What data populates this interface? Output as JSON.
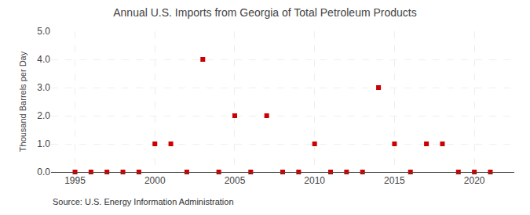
{
  "chart_data": {
    "type": "scatter",
    "title": "Annual U.S. Imports from Georgia of Total Petroleum Products",
    "ylabel": "Thousand Barrels per Day",
    "annotations": [
      "Source: U.S. Energy Information Administration"
    ],
    "x": [
      1995,
      1996,
      1997,
      1998,
      1999,
      2000,
      2001,
      2002,
      2003,
      2004,
      2005,
      2006,
      2007,
      2008,
      2009,
      2010,
      2011,
      2012,
      2013,
      2014,
      2015,
      2016,
      2017,
      2018,
      2019,
      2020,
      2021
    ],
    "values": [
      0,
      0,
      0,
      0,
      0,
      1,
      1,
      0,
      4,
      0,
      2,
      0,
      2,
      0,
      0,
      1,
      0,
      0,
      0,
      3,
      1,
      0,
      1,
      1,
      0,
      0,
      0
    ],
    "color": "#cc0000",
    "marker": "square",
    "xlim": [
      1993.5,
      2022.5
    ],
    "xticks": [
      1995,
      2000,
      2005,
      2010,
      2015,
      2020
    ],
    "ylim": [
      0.0,
      5.0
    ],
    "yticks": [
      {
        "value": 0,
        "label": "0.0"
      },
      {
        "value": 1,
        "label": "1.0"
      },
      {
        "value": 2,
        "label": "2.0"
      },
      {
        "value": 3,
        "label": "3.0"
      },
      {
        "value": 4,
        "label": "4.0"
      },
      {
        "value": 5,
        "label": "5.0"
      }
    ],
    "grid": true
  }
}
